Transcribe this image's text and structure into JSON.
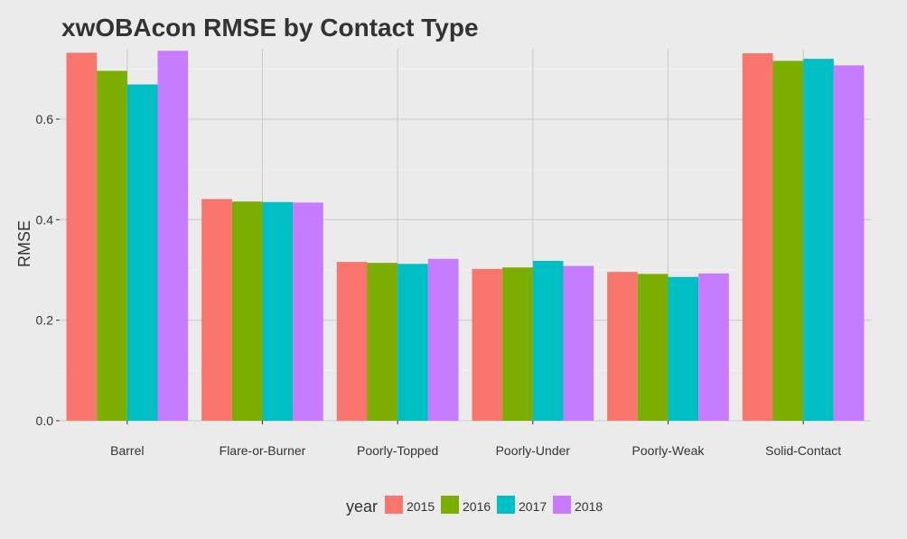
{
  "chart_data": {
    "type": "bar",
    "title": "xwOBAcon RMSE by Contact Type",
    "xlabel": "",
    "ylabel": "RMSE",
    "ylim": [
      0,
      0.74
    ],
    "yticks": [
      0.0,
      0.2,
      0.4,
      0.6
    ],
    "ytick_labels": [
      "0.0",
      "0.2",
      "0.4",
      "0.6"
    ],
    "grid": true,
    "legend_position": "bottom",
    "legend_title": "year",
    "categories": [
      "Barrel",
      "Flare-or-Burner",
      "Poorly-Topped",
      "Poorly-Under",
      "Poorly-Weak",
      "Solid-Contact"
    ],
    "series": [
      {
        "name": "2015",
        "color": "#F8766D",
        "values": [
          0.732,
          0.441,
          0.316,
          0.302,
          0.296,
          0.731
        ]
      },
      {
        "name": "2016",
        "color": "#7CAE00",
        "values": [
          0.696,
          0.436,
          0.314,
          0.305,
          0.292,
          0.716
        ]
      },
      {
        "name": "2017",
        "color": "#00BFC4",
        "values": [
          0.669,
          0.435,
          0.312,
          0.318,
          0.286,
          0.72
        ]
      },
      {
        "name": "2018",
        "color": "#C77CFF",
        "values": [
          0.736,
          0.434,
          0.322,
          0.308,
          0.293,
          0.707
        ]
      }
    ]
  }
}
